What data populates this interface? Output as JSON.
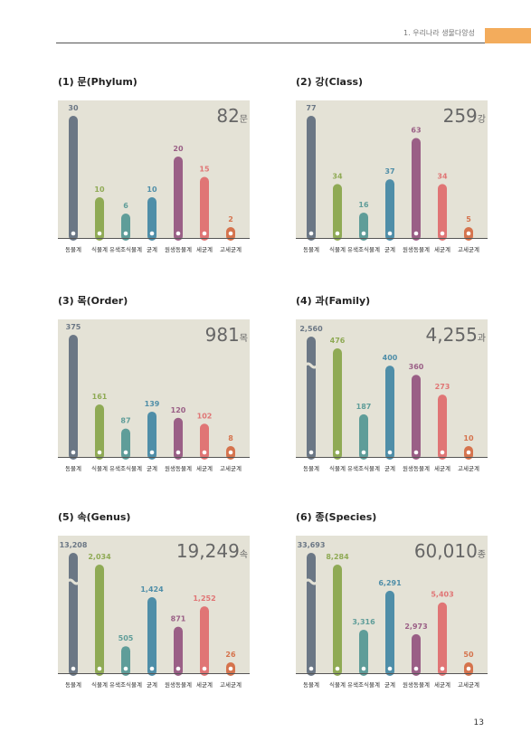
{
  "header": {
    "section": "1. 우리나라 생물다양성"
  },
  "page_number": "13",
  "colors": [
    "#6b7785",
    "#8faa55",
    "#5f9d99",
    "#4f8ea8",
    "#9a5f86",
    "#e07575",
    "#d5734d"
  ],
  "chart_data": [
    {
      "type": "bar",
      "title": "(1) 문(Phylum)",
      "total_number": "82",
      "total_unit": "문",
      "categories": [
        "동물계",
        "식물계",
        "유색조식물계",
        "균계",
        "원생동물계",
        "세균계",
        "고세균계"
      ],
      "values": [
        30,
        10,
        6,
        10,
        20,
        15,
        2
      ],
      "value_labels": [
        "30",
        "10",
        "6",
        "10",
        "20",
        "15",
        "2"
      ],
      "axis_break_first": false
    },
    {
      "type": "bar",
      "title": "(2) 강(Class)",
      "total_number": "259",
      "total_unit": "강",
      "categories": [
        "동물계",
        "식물계",
        "유색조식물계",
        "균계",
        "원생동물계",
        "세균계",
        "고세균계"
      ],
      "values": [
        77,
        34,
        16,
        37,
        63,
        34,
        5
      ],
      "value_labels": [
        "77",
        "34",
        "16",
        "37",
        "63",
        "34",
        "5"
      ],
      "axis_break_first": false
    },
    {
      "type": "bar",
      "title": "(3) 목(Order)",
      "total_number": "981",
      "total_unit": "목",
      "categories": [
        "동물계",
        "식물계",
        "유색조식물계",
        "균계",
        "원생동물계",
        "세균계",
        "고세균계"
      ],
      "values": [
        375,
        161,
        87,
        139,
        120,
        102,
        8
      ],
      "value_labels": [
        "375",
        "161",
        "87",
        "139",
        "120",
        "102",
        "8"
      ],
      "axis_break_first": false
    },
    {
      "type": "bar",
      "title": "(4) 과(Family)",
      "total_number": "4,255",
      "total_unit": "과",
      "categories": [
        "동물계",
        "식물계",
        "유색조식물계",
        "균계",
        "원생동물계",
        "세균계",
        "고세균계"
      ],
      "values": [
        2560,
        476,
        187,
        400,
        360,
        273,
        10
      ],
      "value_labels": [
        "2,560",
        "476",
        "187",
        "400",
        "360",
        "273",
        "10"
      ],
      "axis_break_first": true
    },
    {
      "type": "bar",
      "title": "(5) 속(Genus)",
      "total_number": "19,249",
      "total_unit": "속",
      "categories": [
        "동물계",
        "식물계",
        "유색조식물계",
        "균계",
        "원생동물계",
        "세균계",
        "고세균계"
      ],
      "values": [
        13208,
        2034,
        505,
        1424,
        871,
        1252,
        26
      ],
      "value_labels": [
        "13,208",
        "2,034",
        "505",
        "1,424",
        "871",
        "1,252",
        "26"
      ],
      "axis_break_first": true
    },
    {
      "type": "bar",
      "title": "(6) 종(Species)",
      "total_number": "60,010",
      "total_unit": "종",
      "categories": [
        "동물계",
        "식물계",
        "유색조식물계",
        "균계",
        "원생동물계",
        "세균계",
        "고세균계"
      ],
      "values": [
        33693,
        8284,
        3316,
        6291,
        2973,
        5403,
        50
      ],
      "value_labels": [
        "33,693",
        "8,284",
        "3,316",
        "6,291",
        "2,973",
        "5,403",
        "50"
      ],
      "axis_break_first": true
    }
  ]
}
